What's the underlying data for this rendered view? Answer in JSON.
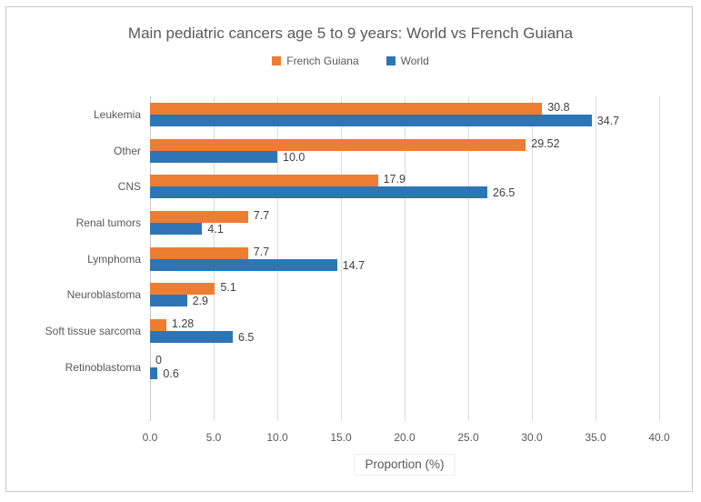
{
  "chart_data": {
    "type": "bar",
    "orientation": "horizontal",
    "title": "Main pediatric cancers age 5 to 9 years: World vs French Guiana",
    "categories": [
      "Leukemia",
      "Other",
      "CNS",
      "Renal tumors",
      "Lymphoma",
      "Neuroblastoma",
      "Soft tissue sarcoma",
      "Retinoblastoma"
    ],
    "series": [
      {
        "name": "French Guiana",
        "color": "#ED7D31",
        "values": [
          30.8,
          29.52,
          17.9,
          7.7,
          7.7,
          5.1,
          1.28,
          0
        ],
        "labels": [
          "30.8",
          "29.52",
          "17.9",
          "7.7",
          "7.7",
          "5.1",
          "1.28",
          "0"
        ]
      },
      {
        "name": "World",
        "color": "#2E75B6",
        "values": [
          34.7,
          10.0,
          26.5,
          4.1,
          14.7,
          2.9,
          6.5,
          0.6
        ],
        "labels": [
          "34.7",
          "10.0",
          "26.5",
          "4.1",
          "14.7",
          "2.9",
          "6.5",
          "0.6"
        ]
      }
    ],
    "xlabel": "Proportion (%)",
    "xlim": [
      0,
      40
    ],
    "xticks": [
      "0.0",
      "5.0",
      "10.0",
      "15.0",
      "20.0",
      "25.0",
      "30.0",
      "35.0",
      "40.0"
    ],
    "grid": "vertical",
    "legend_position": "top"
  },
  "colors": {
    "background": "#FFFFFF",
    "frame_border": "#C9C9C9",
    "gridline": "#DCDCDC",
    "title_text": "#595959",
    "axis_text": "#595959",
    "value_label_text": "#404040"
  }
}
